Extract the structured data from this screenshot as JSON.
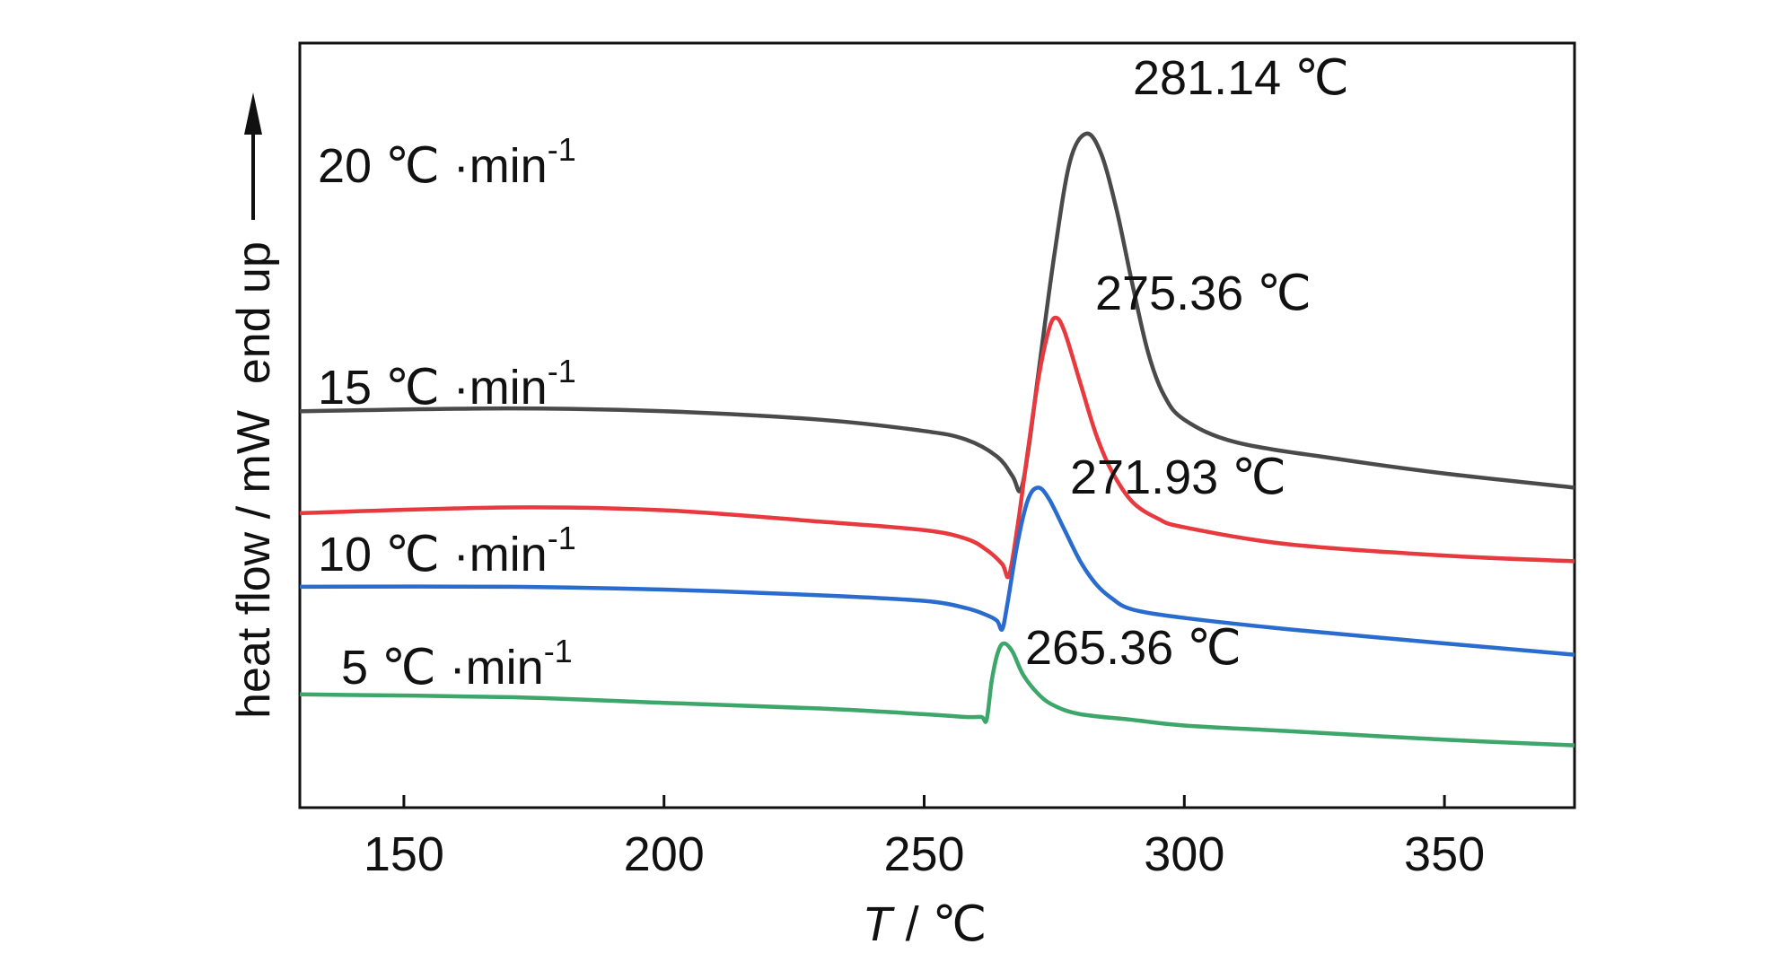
{
  "chart_data": {
    "type": "line",
    "xlabel_italic": "T",
    "xlabel_rest": " / ℃",
    "ylabel": "heat flow / mW  end up",
    "xlim": [
      130,
      375
    ],
    "x_ticks": [
      150,
      200,
      250,
      300,
      350
    ],
    "grid": false,
    "legend": "none",
    "series": [
      {
        "label_main": "20 ℃ ·min",
        "label_sup": "-1",
        "peak_label": "281.14 ℃",
        "color": "#4a4a4a",
        "x": [
          130,
          170,
          200,
          230,
          250,
          258,
          264,
          267,
          268.5,
          270,
          272,
          275,
          278,
          281.14,
          284,
          287,
          290,
          293,
          296,
          300,
          310,
          330,
          350,
          375
        ],
        "y": [
          7.0,
          7.1,
          7.0,
          6.7,
          6.3,
          6.0,
          5.4,
          4.7,
          4.2,
          5.6,
          8.4,
          12.5,
          15.8,
          16.8,
          16.1,
          14.1,
          11.5,
          9.1,
          7.6,
          6.7,
          5.9,
          5.3,
          4.8,
          4.3
        ]
      },
      {
        "label_main": "15 ℃ ·min",
        "label_sup": "-1",
        "peak_label": "275.36 ℃",
        "color": "#e8393f",
        "x": [
          130,
          170,
          200,
          230,
          250,
          258,
          262,
          265,
          266.3,
          268,
          270,
          272,
          274,
          275.36,
          277,
          280,
          283,
          286,
          290,
          295,
          300,
          320,
          350,
          375
        ],
        "y": [
          3.4,
          3.6,
          3.5,
          3.1,
          2.8,
          2.5,
          2.1,
          1.6,
          1.2,
          3.0,
          5.7,
          8.2,
          9.9,
          10.3,
          9.8,
          8.0,
          6.2,
          4.9,
          3.8,
          3.2,
          2.9,
          2.3,
          1.9,
          1.7
        ]
      },
      {
        "label_main": "10 ℃ ·min",
        "label_sup": "-1",
        "peak_label": "271.93 ℃",
        "color": "#2a6cce",
        "x": [
          130,
          170,
          200,
          230,
          250,
          258,
          262,
          264,
          265,
          266,
          268,
          270,
          271.93,
          274,
          277,
          280,
          283,
          286,
          290,
          300,
          320,
          350,
          375
        ],
        "y": [
          0.8,
          0.8,
          0.7,
          0.5,
          0.3,
          0.05,
          -0.2,
          -0.4,
          -0.7,
          0.2,
          2.4,
          3.9,
          4.3,
          3.9,
          2.8,
          1.7,
          0.9,
          0.4,
          0.0,
          -0.3,
          -0.7,
          -1.2,
          -1.6
        ]
      },
      {
        "label_main": "5 ℃ ·min",
        "label_sup": "-1",
        "peak_label": "265.36 ℃",
        "color": "#3da66a",
        "x": [
          130,
          170,
          200,
          230,
          250,
          258,
          261,
          262,
          263,
          264.2,
          265.36,
          267,
          269,
          272,
          275,
          280,
          290,
          300,
          320,
          350,
          375
        ],
        "y": [
          -3.0,
          -3.1,
          -3.3,
          -3.5,
          -3.7,
          -3.8,
          -3.8,
          -3.9,
          -2.5,
          -1.5,
          -1.2,
          -1.5,
          -2.3,
          -3.0,
          -3.4,
          -3.7,
          -3.9,
          -4.1,
          -4.3,
          -4.6,
          -4.8
        ]
      }
    ]
  }
}
